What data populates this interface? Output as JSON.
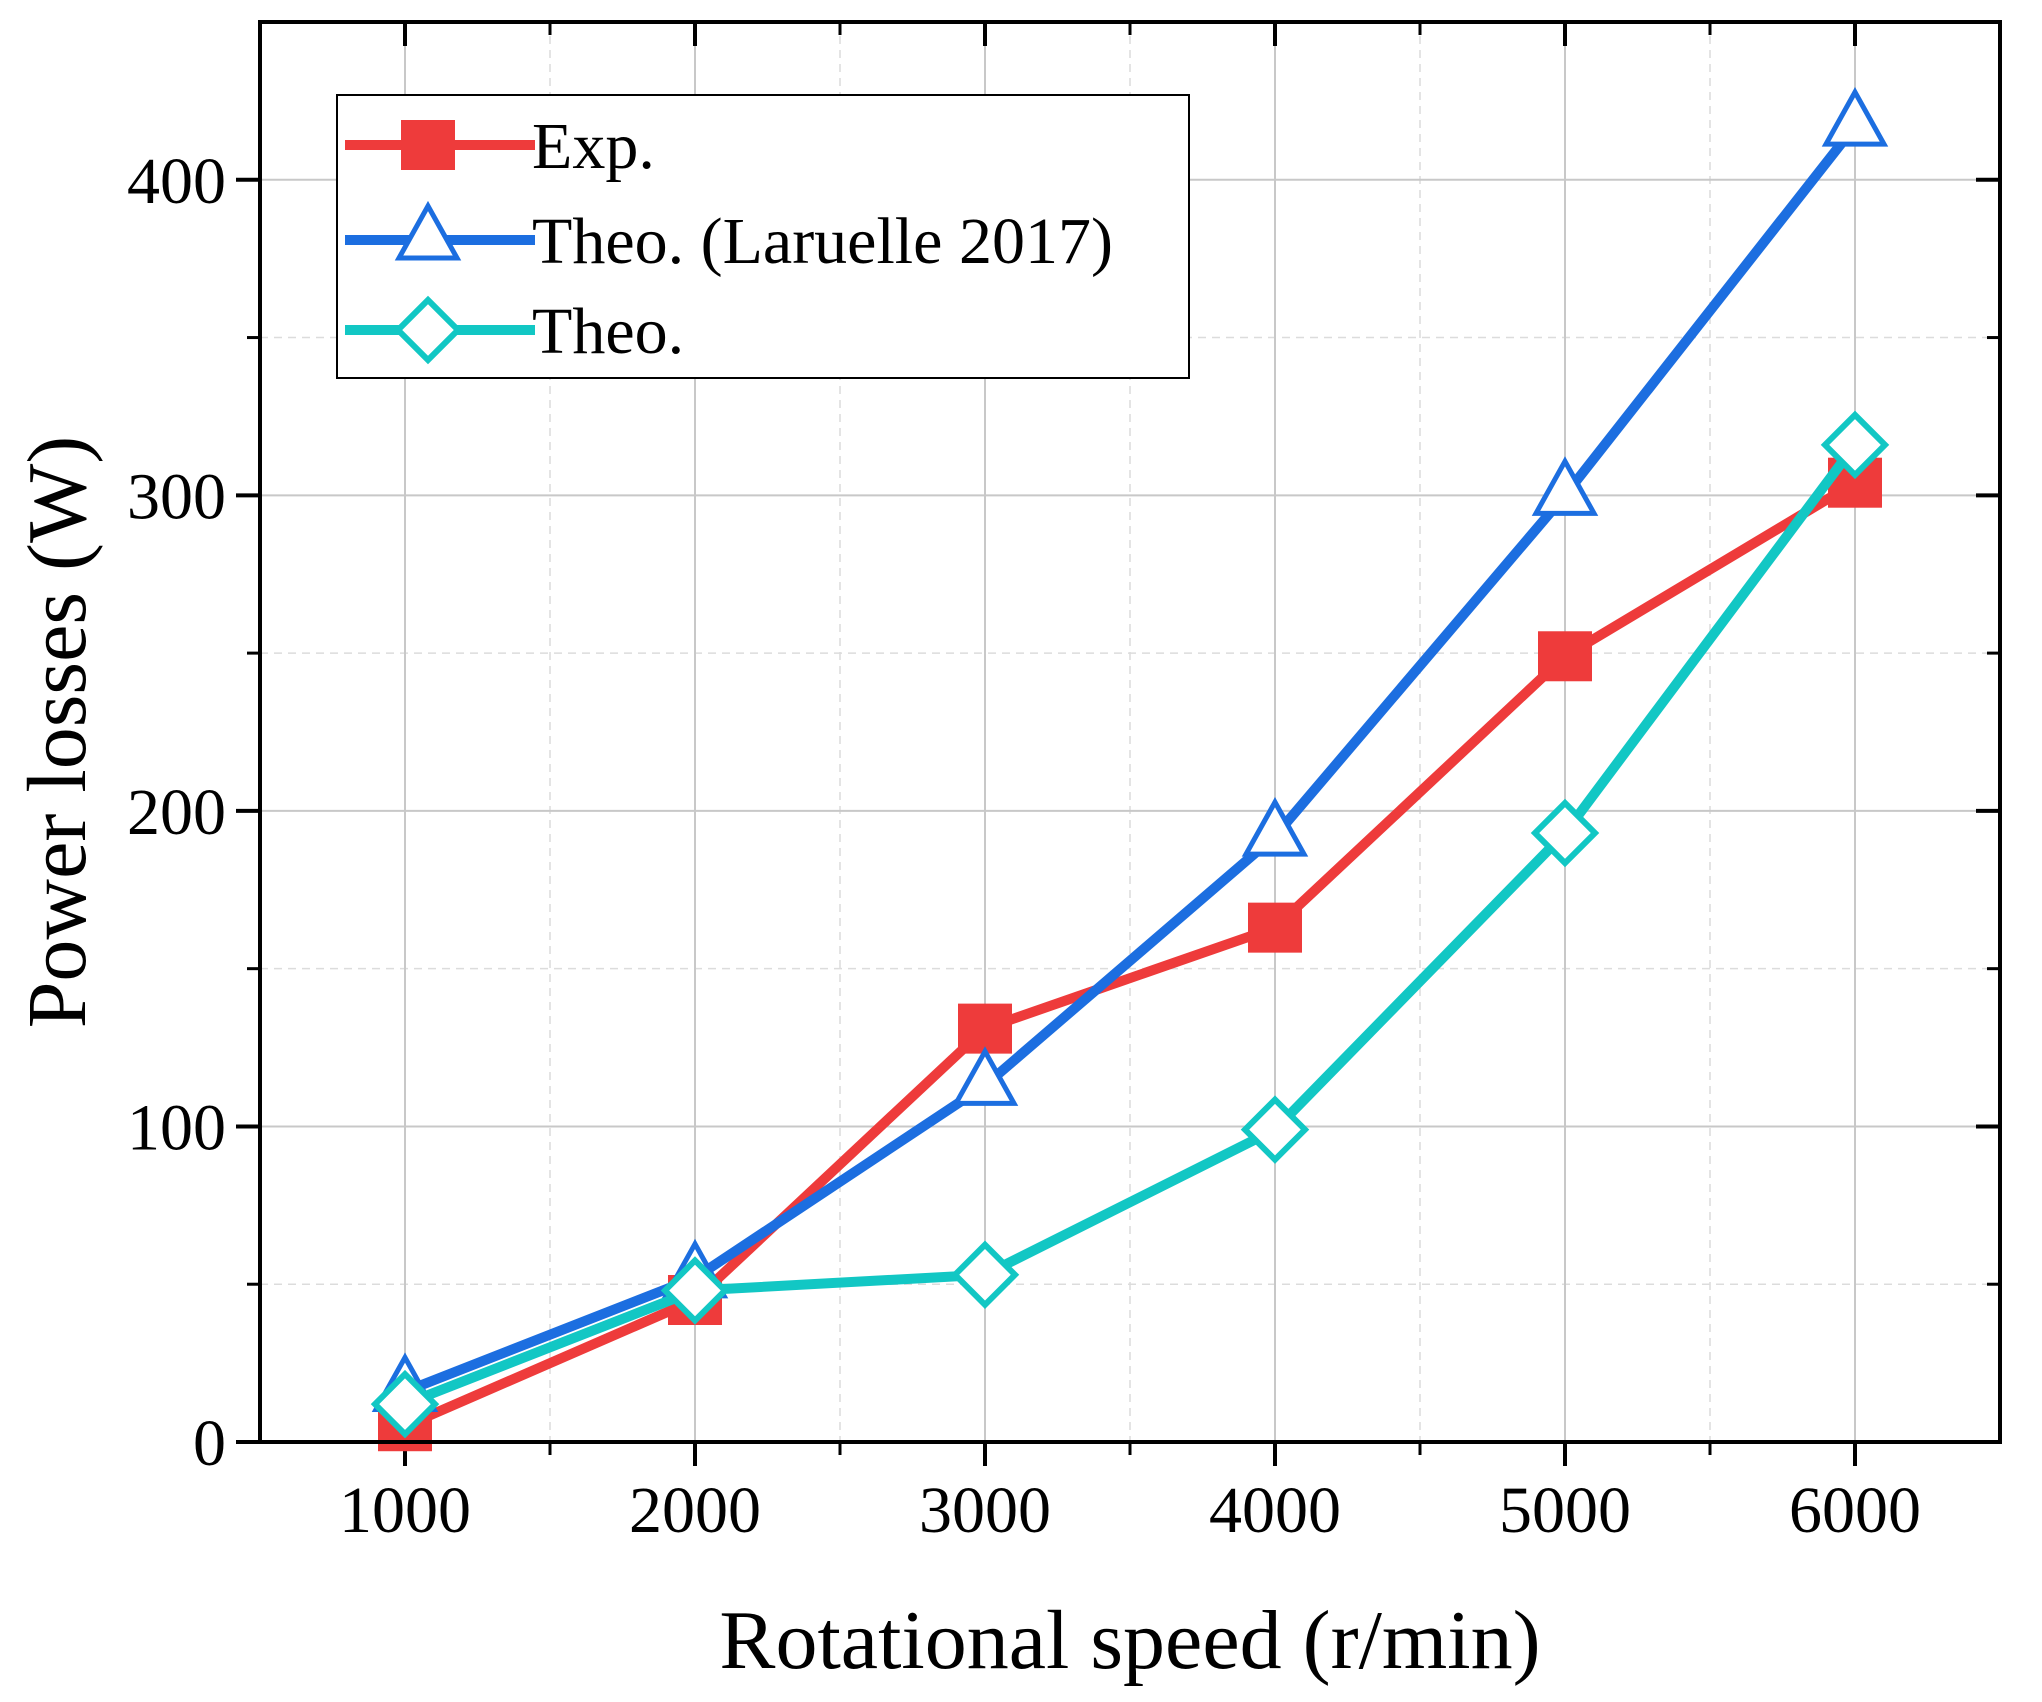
{
  "chart_data": {
    "type": "line",
    "title": "",
    "xlabel": "Rotational speed (r/min)",
    "ylabel": "Power losses (W)",
    "xlim": [
      500,
      6500
    ],
    "ylim": [
      0,
      450
    ],
    "xticks": [
      1000,
      2000,
      3000,
      4000,
      5000,
      6000
    ],
    "yticks": [
      0,
      100,
      200,
      300,
      400
    ],
    "grid": true,
    "legend_position": "top-left",
    "series": [
      {
        "name": "Exp.",
        "color": "#ee3b3b",
        "marker": "square",
        "x": [
          1000,
          2000,
          3000,
          4000,
          5000,
          6000
        ],
        "y": [
          5,
          45,
          131,
          163,
          249,
          304
        ]
      },
      {
        "name": "Theo. (Laruelle 2017)",
        "color": "#1c6ee0",
        "marker": "triangle",
        "x": [
          1000,
          2000,
          3000,
          4000,
          5000,
          6000
        ],
        "y": [
          16,
          52,
          113,
          192,
          300,
          417
        ]
      },
      {
        "name": "Theo.",
        "color": "#12c7c4",
        "marker": "diamond",
        "x": [
          1000,
          2000,
          3000,
          4000,
          5000,
          6000
        ],
        "y": [
          12,
          48,
          53,
          99,
          193,
          316
        ]
      }
    ]
  }
}
